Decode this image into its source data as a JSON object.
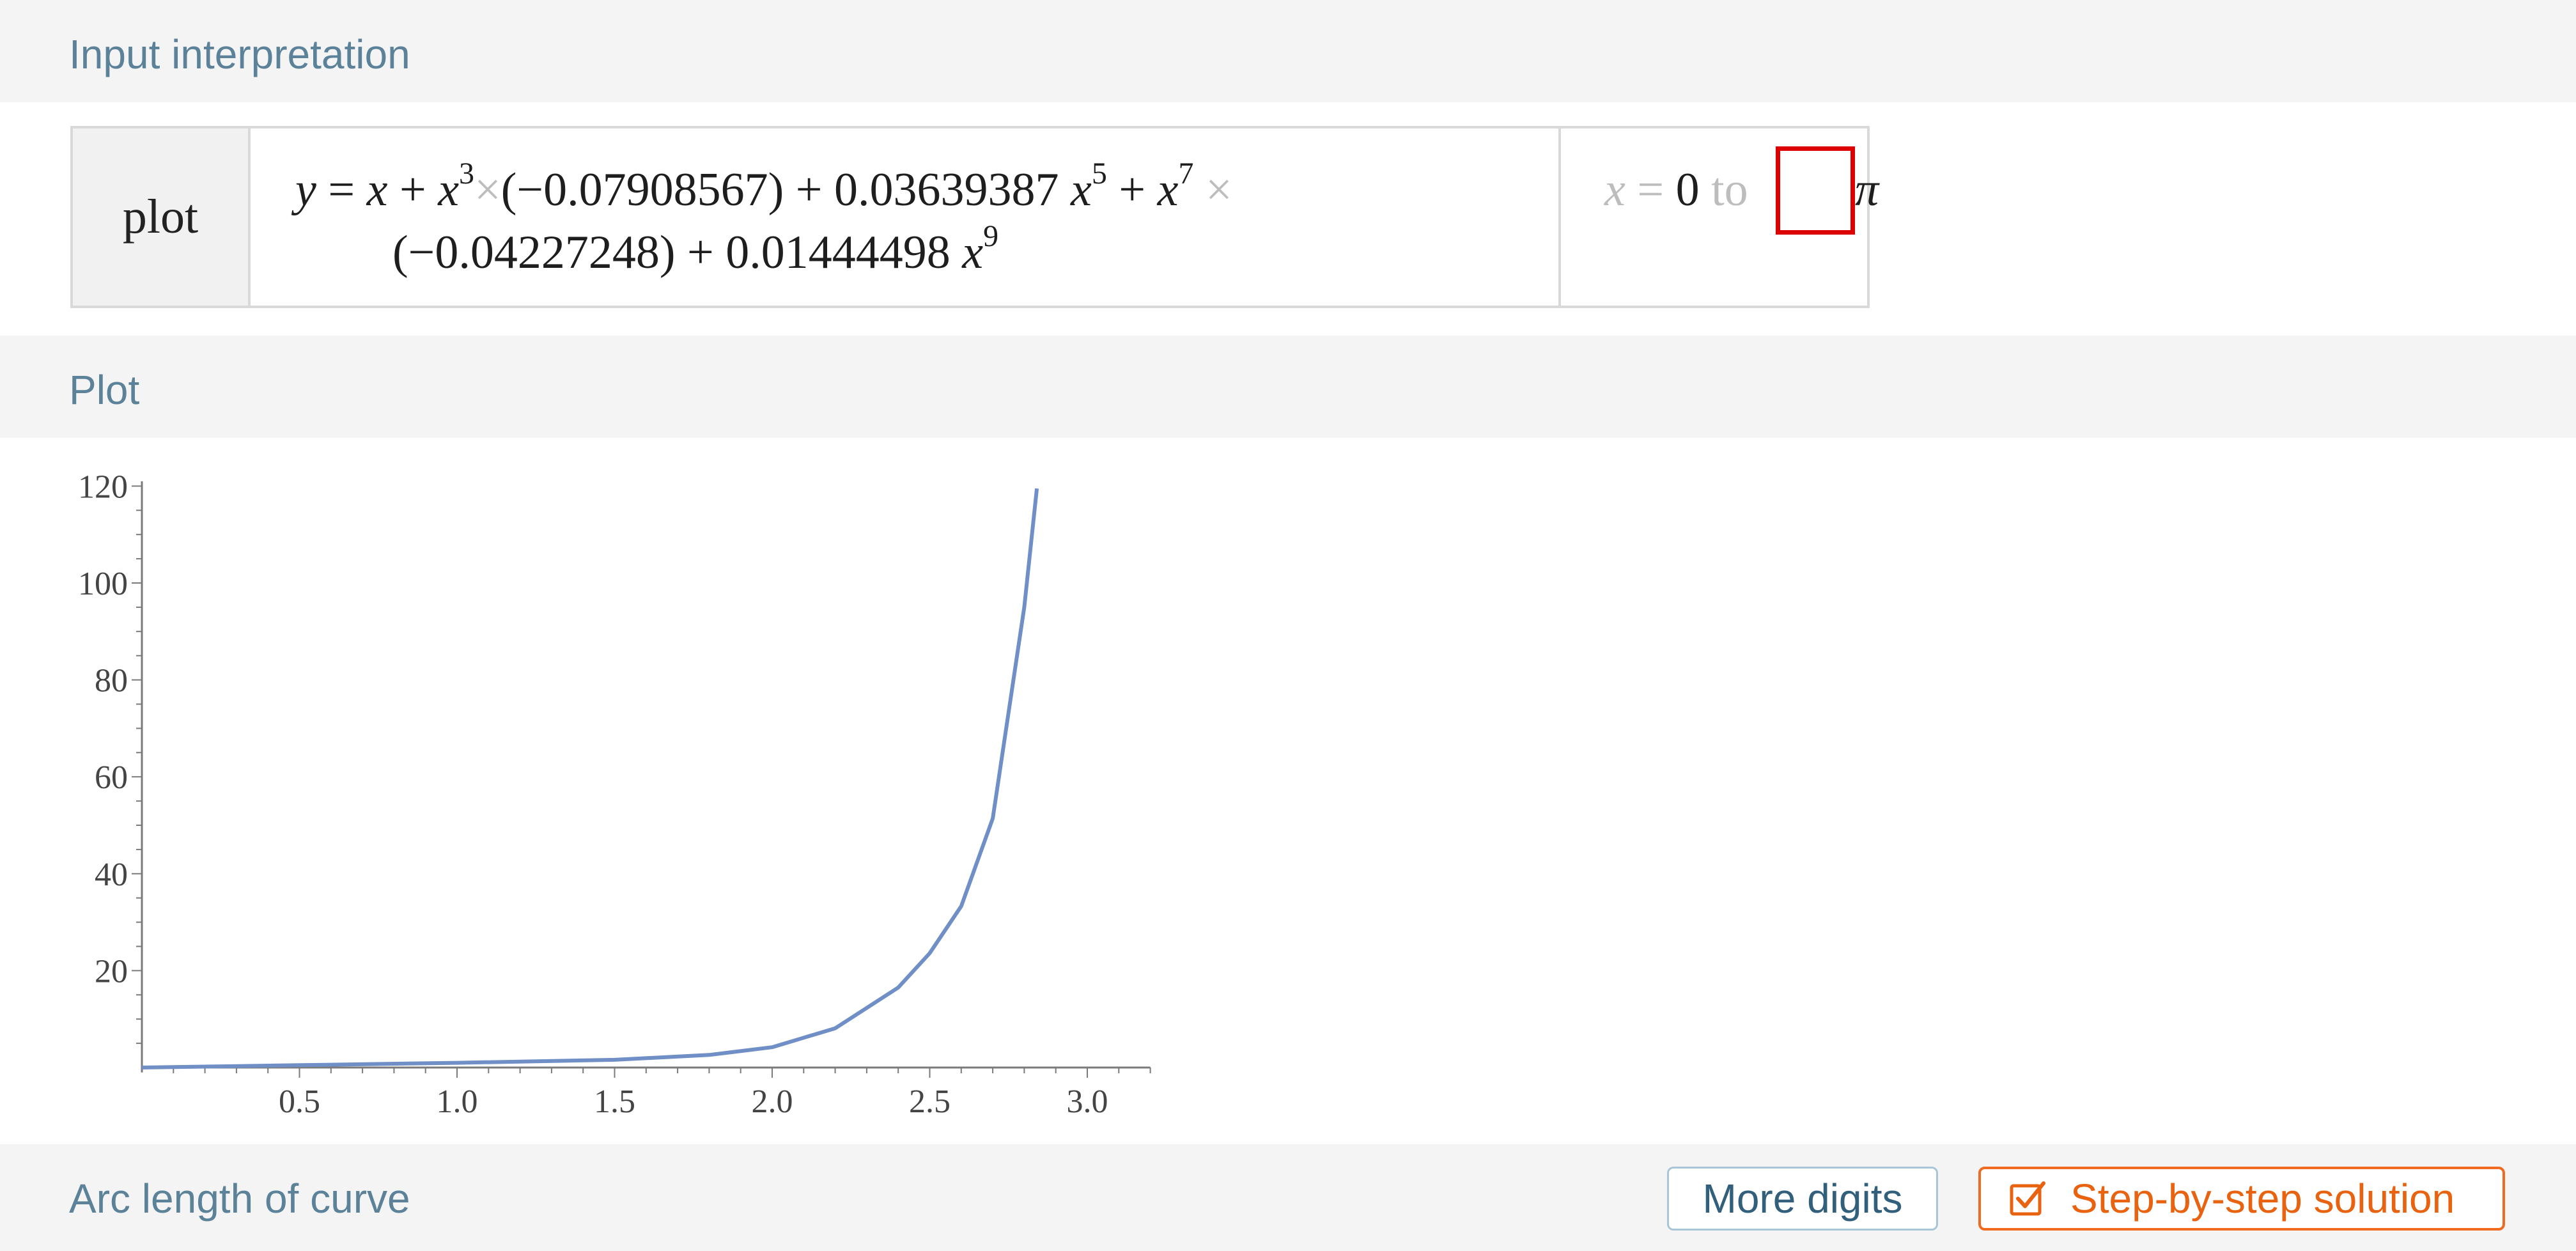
{
  "sections": {
    "input_title": "Input interpretation",
    "plot_title": "Plot",
    "arc_title": "Arc length of curve"
  },
  "input": {
    "command": "plot",
    "expr": {
      "l1_y": "y",
      "l1_eq": " = ",
      "l1_x": "x",
      "l1_plus": " + ",
      "l1_x3": "x",
      "l1_e3": "3",
      "l1_times": "×",
      "l1_c3": "(−0.07908567) + 0.03639387 ",
      "l1_x5": "x",
      "l1_e5": "5",
      "l1_plus2": " + ",
      "l1_x7": "x",
      "l1_e7": "7",
      "l1_times2": " ×",
      "l2_c": "(−0.04227248) + 0.01444498 ",
      "l2_x9": "x",
      "l2_e9": "9"
    },
    "range": {
      "var": "x",
      "eq": " = ",
      "from": "0",
      "to_word": " to",
      "upper": "π"
    }
  },
  "buttons": {
    "more_digits": "More digits",
    "step_by_step": "Step-by-step solution"
  },
  "colors": {
    "section_band": "#f4f4f4",
    "section_title": "#5b8299",
    "curve": "#6f8fc6",
    "highlight_box": "#dd0000",
    "step_button": "#f06b1f",
    "more_digits_border": "#a9c6d8"
  },
  "chart_data": {
    "type": "line",
    "title": "",
    "xlabel": "",
    "ylabel": "",
    "xlim": [
      0,
      3.2
    ],
    "ylim": [
      -1,
      121
    ],
    "x_ticks": [
      "0.5",
      "1.0",
      "1.5",
      "2.0",
      "2.5",
      "3.0"
    ],
    "y_ticks": [
      "20",
      "40",
      "60",
      "80",
      "100",
      "120"
    ],
    "grid": false,
    "series": [
      {
        "x": [
          0,
          0.5,
          1.0,
          1.5,
          1.8,
          2.0,
          2.2,
          2.4,
          2.5,
          2.6,
          2.7,
          2.8,
          2.84
        ],
        "y": [
          0,
          0.49,
          0.97,
          1.6,
          2.6,
          4.2,
          8.1,
          16.5,
          23.6,
          33.3,
          51.4,
          95.0,
          119.5
        ],
        "color": "#6f8fc6"
      }
    ]
  }
}
